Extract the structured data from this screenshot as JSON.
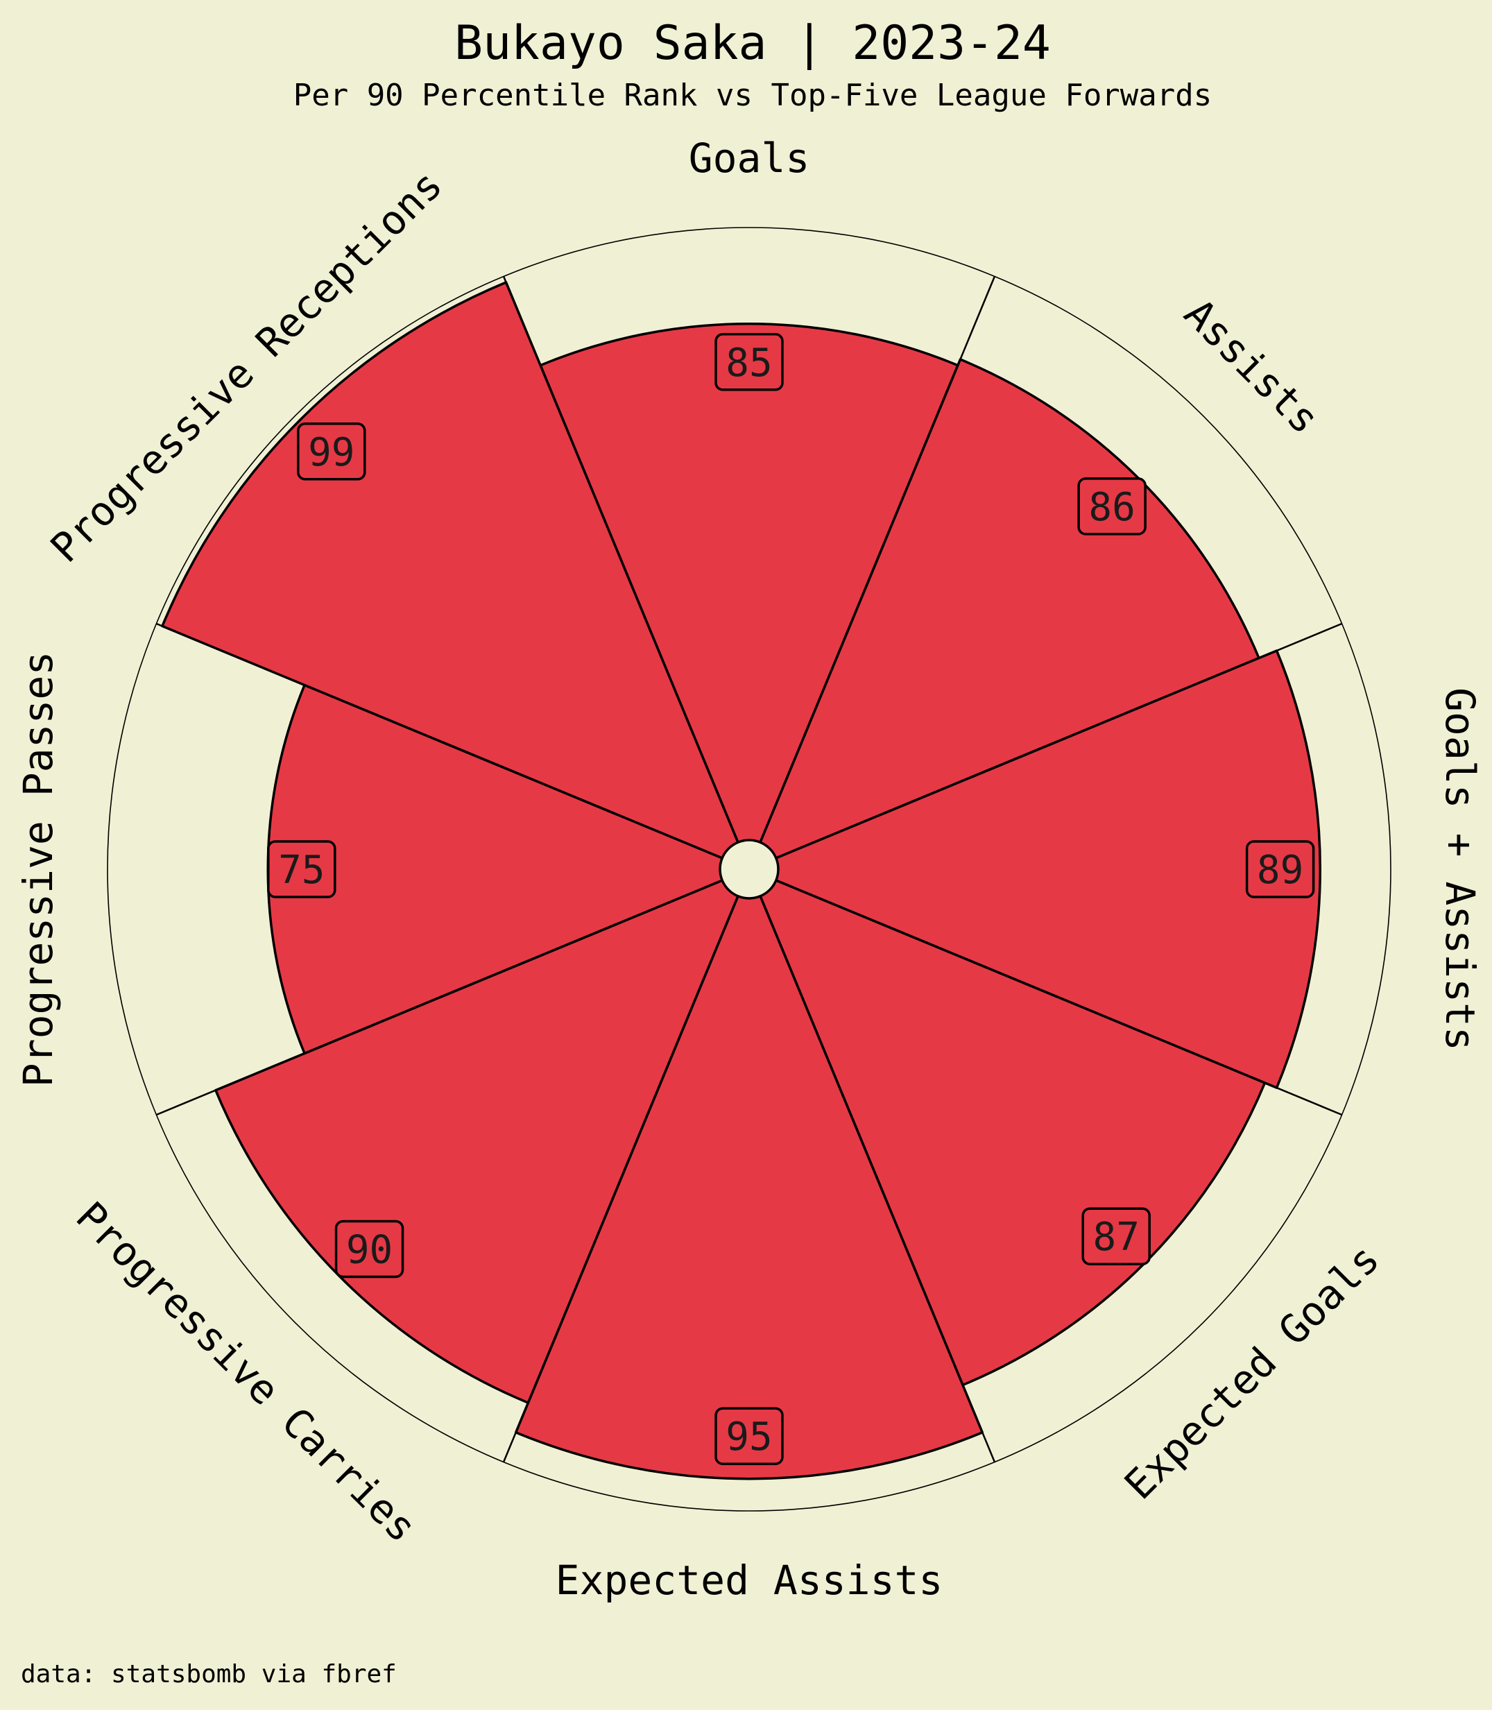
{
  "chart_data": {
    "type": "polar-bar",
    "title": "Bukayo Saka | 2023-24",
    "subtitle": "Per 90 Percentile Rank vs Top-Five League Forwards",
    "categories": [
      "Goals",
      "Assists",
      "Goals + Assists",
      "Expected Goals",
      "Expected Assists",
      "Progressive Carries",
      "Progressive Passes",
      "Progressive Receptions"
    ],
    "values": [
      85,
      86,
      89,
      87,
      95,
      90,
      75,
      99
    ],
    "rlim": [
      0,
      100
    ],
    "colors": {
      "background": "#f0f0d4",
      "bar": "#e63946",
      "edge": "#000000",
      "center": "#f0f0d4"
    }
  },
  "source_note": "data: statsbomb via fbref"
}
